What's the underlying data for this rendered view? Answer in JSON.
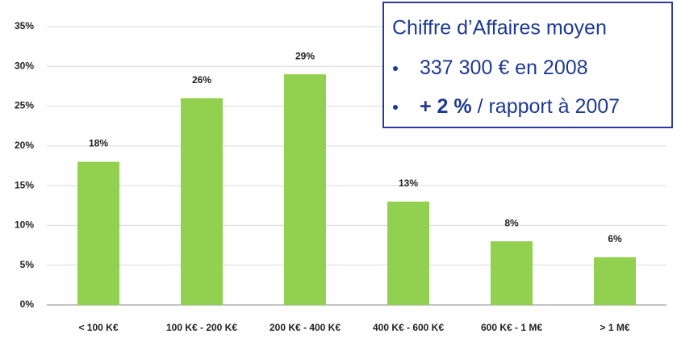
{
  "chart_data": {
    "type": "bar",
    "categories": [
      "< 100 K€",
      "100  K€ - 200  K€",
      "200  K€ - 400  K€",
      "400  K€ - 600  K€",
      "600  K€ - 1 M€",
      "> 1 M€"
    ],
    "values": [
      18,
      26,
      29,
      13,
      8,
      6
    ],
    "value_labels": [
      "18%",
      "26%",
      "29%",
      "13%",
      "8%",
      "6%"
    ],
    "color": "#92d050",
    "ylim": [
      0,
      35
    ],
    "yticks": [
      {
        "value": 0,
        "label": "0%"
      },
      {
        "value": 5,
        "label": "5%"
      },
      {
        "value": 10,
        "label": "10%"
      },
      {
        "value": 15,
        "label": "15%"
      },
      {
        "value": 20,
        "label": "20%"
      },
      {
        "value": 25,
        "label": "25%"
      },
      {
        "value": 30,
        "label": "30%"
      },
      {
        "value": 35,
        "label": "35%"
      }
    ],
    "grid": true,
    "annotation": {
      "title": "Chiffre d’Affaires moyen",
      "lines": [
        [
          "337 300 € en 2008"
        ],
        [
          "+ 2 %",
          " / rapport à 2007"
        ]
      ]
    }
  }
}
